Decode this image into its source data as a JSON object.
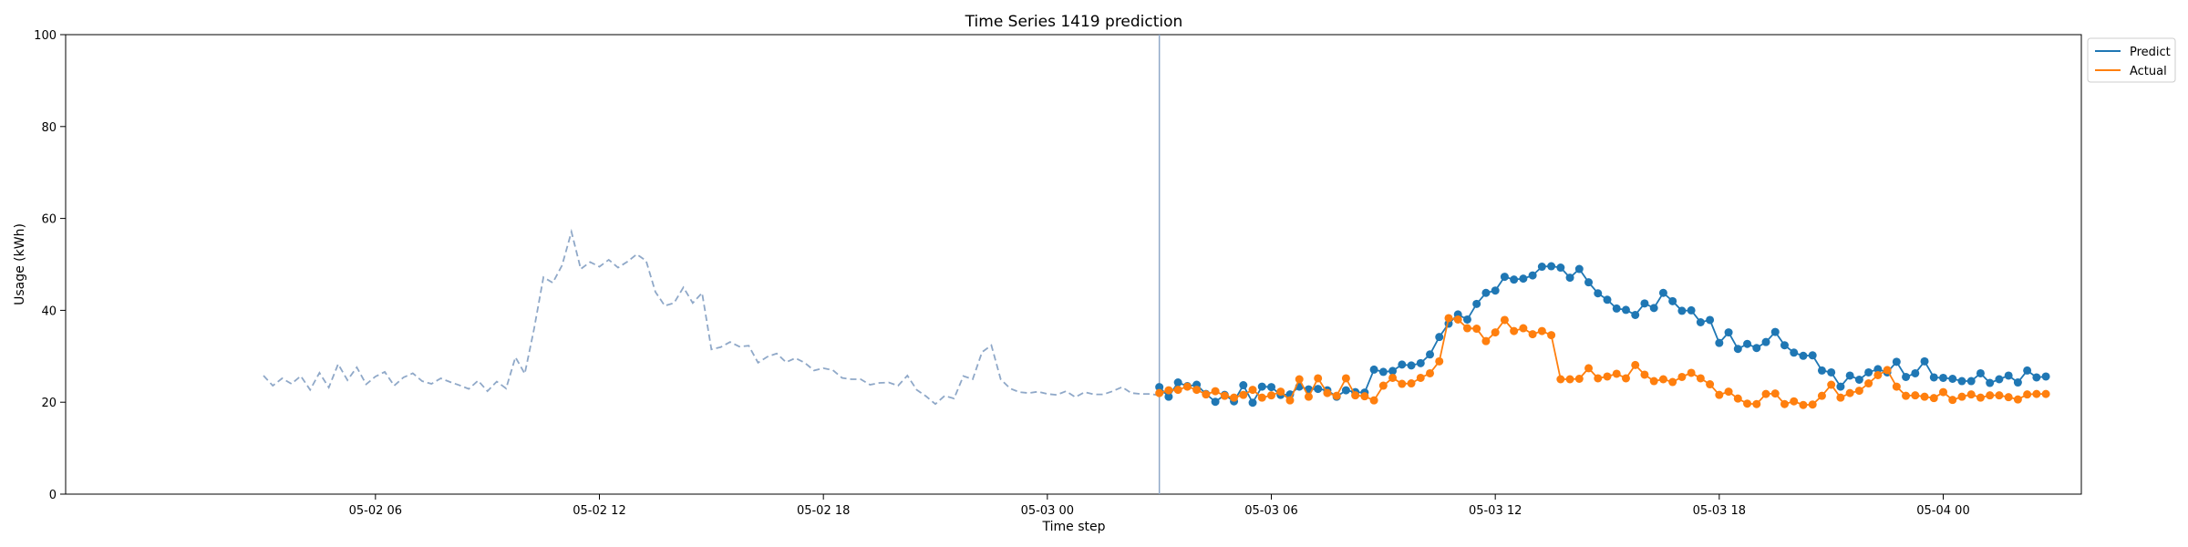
{
  "chart_data": {
    "type": "line",
    "title": "Time Series 1419 prediction",
    "xlabel": "Time step",
    "ylabel": "Usage (kWh)",
    "ylim": [
      0,
      100
    ],
    "yticks": [
      0,
      20,
      40,
      60,
      80,
      100
    ],
    "xlim_hours": [
      -2.3,
      51.7
    ],
    "x_origin": "2024-05-02 00:00",
    "xtick_labels": [
      "05-02 06",
      "05-02 12",
      "05-02 18",
      "05-03 00",
      "05-03 06",
      "05-03 12",
      "05-03 18",
      "05-04 00"
    ],
    "xticks_hours": [
      6,
      12,
      18,
      24,
      30,
      36,
      42,
      48
    ],
    "split_hours": 27.0,
    "legend": {
      "position": "upper-right outside",
      "entries": [
        "Predict",
        "Actual"
      ]
    },
    "colors": {
      "predict": "#1f77b4",
      "actual": "#ff7f0e",
      "history": "#8fa8c8",
      "split": "#8fa8c8"
    },
    "series": [
      {
        "name": "",
        "style": "dashed",
        "x_start_hours": 3.0,
        "step_hours": 0.25,
        "values": [
          25.8,
          23.6,
          25.2,
          24.0,
          25.7,
          22.7,
          26.4,
          23.2,
          28.3,
          24.8,
          27.6,
          23.9,
          25.6,
          26.6,
          23.6,
          25.4,
          26.3,
          24.6,
          24.0,
          25.2,
          24.4,
          23.7,
          22.9,
          24.7,
          22.4,
          24.5,
          23.0,
          29.8,
          26.2,
          36.0,
          47.2,
          46.0,
          49.8,
          57.1,
          49.0,
          50.5,
          49.5,
          51.0,
          49.3,
          50.6,
          52.2,
          50.8,
          44.0,
          41.0,
          41.6,
          45.0,
          41.6,
          43.8,
          31.5,
          32.0,
          33.1,
          32.1,
          32.3,
          28.6,
          29.9,
          30.6,
          28.7,
          29.6,
          28.6,
          26.9,
          27.4,
          27.0,
          25.3,
          25.0,
          25.0,
          23.8,
          24.2,
          24.3,
          23.6,
          25.8,
          22.7,
          21.3,
          19.6,
          21.4,
          20.8,
          25.7,
          25.0,
          30.9,
          32.4,
          25.0,
          23.0,
          22.2,
          22.0,
          22.3,
          21.8,
          21.6,
          22.4,
          21.1,
          22.2,
          21.7,
          21.7,
          22.4,
          23.3,
          22.0,
          21.8,
          21.8,
          21.5,
          22.6
        ]
      },
      {
        "name": "Predict",
        "style": "solid-marker",
        "x_start_hours": 27.0,
        "step_hours": 0.25,
        "values": [
          23.3,
          21.2,
          24.3,
          23.5,
          23.8,
          21.8,
          20.1,
          21.6,
          20.2,
          23.7,
          19.9,
          23.4,
          23.3,
          21.6,
          21.7,
          23.4,
          22.8,
          22.9,
          22.6,
          21.2,
          22.6,
          22.2,
          22.1,
          27.1,
          26.6,
          26.8,
          28.2,
          28.0,
          28.5,
          30.4,
          34.2,
          37.1,
          39.1,
          38.0,
          41.4,
          43.8,
          44.3,
          47.3,
          46.7,
          46.9,
          47.6,
          49.5,
          49.6,
          49.3,
          47.1,
          49.0,
          46.1,
          43.7,
          42.3,
          40.4,
          40.1,
          39.0,
          41.5,
          40.5,
          43.8,
          42.0,
          39.9,
          40.0,
          37.4,
          37.9,
          32.9,
          35.2,
          31.6,
          32.7,
          31.8,
          33.1,
          35.3,
          32.4,
          30.8,
          30.1,
          30.2,
          26.9,
          26.5,
          23.4,
          25.8,
          24.9,
          26.5,
          27.2,
          26.5,
          28.8,
          25.5,
          26.3,
          28.9,
          25.4,
          25.3,
          25.1,
          24.6,
          24.6,
          26.3,
          24.2,
          25.0,
          25.8,
          24.3,
          26.9,
          25.4,
          25.6
        ]
      },
      {
        "name": "Actual",
        "style": "solid-marker",
        "x_start_hours": 27.0,
        "step_hours": 0.25,
        "values": [
          22.0,
          22.6,
          22.7,
          23.4,
          22.7,
          21.7,
          22.4,
          21.4,
          21.0,
          21.6,
          22.7,
          21.0,
          21.5,
          22.3,
          20.4,
          25.0,
          21.2,
          25.2,
          22.0,
          21.4,
          25.2,
          21.5,
          21.3,
          20.4,
          23.6,
          25.3,
          24.0,
          24.1,
          25.3,
          26.3,
          28.9,
          38.3,
          38.0,
          36.1,
          36.0,
          33.3,
          35.2,
          37.9,
          35.5,
          36.1,
          34.8,
          35.5,
          34.6,
          25.0,
          25.0,
          25.1,
          27.4,
          25.2,
          25.6,
          26.2,
          25.2,
          28.1,
          26.0,
          24.6,
          25.0,
          24.4,
          25.5,
          26.4,
          25.2,
          23.9,
          21.6,
          22.3,
          20.8,
          19.7,
          19.6,
          21.8,
          21.9,
          19.6,
          20.2,
          19.4,
          19.5,
          21.4,
          23.8,
          21.0,
          22.0,
          22.5,
          24.1,
          25.9,
          27.0,
          23.4,
          21.4,
          21.5,
          21.2,
          20.9,
          22.2,
          20.5,
          21.2,
          21.7,
          21.0,
          21.5,
          21.5,
          21.1,
          20.6,
          21.7,
          21.8,
          21.8
        ]
      }
    ]
  }
}
